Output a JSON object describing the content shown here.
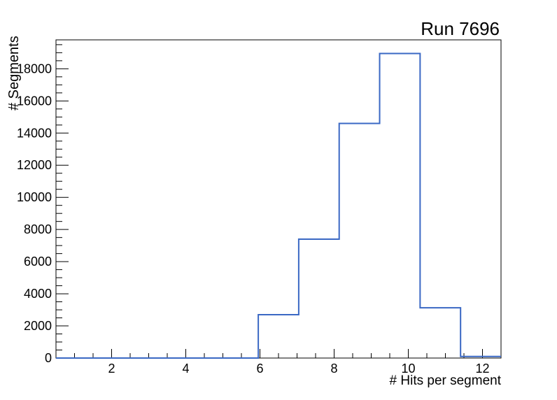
{
  "chart_data": {
    "type": "histogram",
    "subtype": "step-outline",
    "title": "Run 7696",
    "xlabel": "# Hits per segment",
    "ylabel": "# Segments",
    "xlim": [
      0.5,
      12.5
    ],
    "ylim": [
      0,
      19800
    ],
    "bins": 11,
    "bin_edges": [
      0.5,
      1.591,
      2.682,
      3.773,
      4.864,
      5.955,
      7.045,
      8.136,
      9.227,
      10.318,
      11.409,
      12.5
    ],
    "counts": [
      0,
      0,
      0,
      0,
      0,
      2700,
      7400,
      14600,
      18950,
      3130,
      100
    ],
    "x_major_ticks": [
      2,
      4,
      6,
      8,
      10,
      12
    ],
    "x_tick_labels": [
      "2",
      "4",
      "6",
      "8",
      "10",
      "12"
    ],
    "x_minor_tick_step": 0.5,
    "y_major_tick_step": 2000,
    "y_minor_tick_step": 500,
    "y_tick_labels": [
      "0",
      "2000",
      "4000",
      "6000",
      "8000",
      "10000",
      "12000",
      "14000",
      "16000",
      "18000"
    ],
    "grid": false,
    "legend": "none",
    "line_color": "#3a68c4",
    "axis_color": "#000000",
    "background": "#ffffff"
  }
}
